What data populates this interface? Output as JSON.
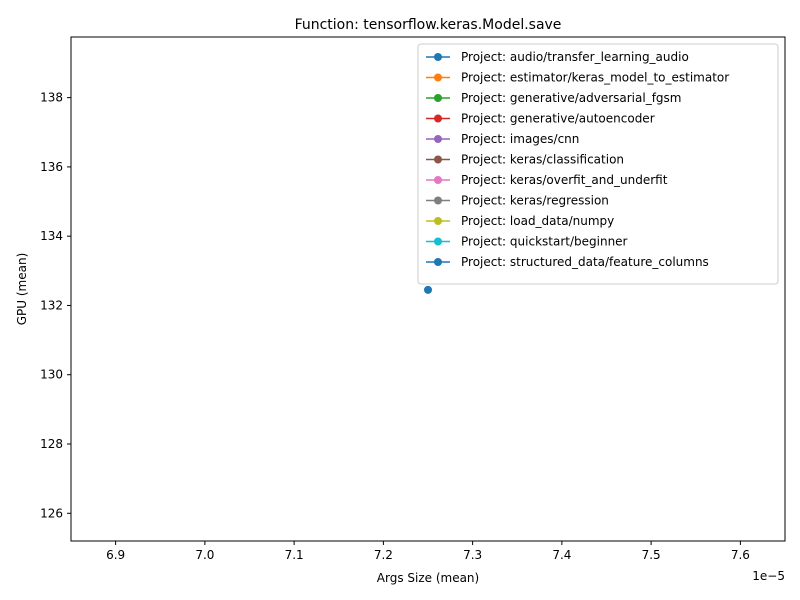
{
  "chart_data": {
    "type": "line",
    "title": "Function: tensorflow.keras.Model.save",
    "xlabel": "Args Size (mean)",
    "ylabel": "GPU (mean)",
    "x_offset_label": "1e−5",
    "xlim": [
      6.85,
      7.65
    ],
    "ylim": [
      125.2,
      139.75
    ],
    "x_ticks": [
      6.9,
      7.0,
      7.1,
      7.2,
      7.3,
      7.4,
      7.5,
      7.6
    ],
    "x_tick_labels": [
      "6.9",
      "7.0",
      "7.1",
      "7.2",
      "7.3",
      "7.4",
      "7.5",
      "7.6"
    ],
    "y_ticks": [
      126,
      128,
      130,
      132,
      134,
      136,
      138
    ],
    "y_tick_labels": [
      "126",
      "128",
      "130",
      "132",
      "134",
      "136",
      "138"
    ],
    "legend_position": "upper right",
    "grid": false,
    "series": [
      {
        "name": "Project: audio/transfer_learning_audio",
        "color": "#1f77b4",
        "points": []
      },
      {
        "name": "Project: estimator/keras_model_to_estimator",
        "color": "#ff7f0e",
        "points": []
      },
      {
        "name": "Project: generative/adversarial_fgsm",
        "color": "#2ca02c",
        "points": []
      },
      {
        "name": "Project: generative/autoencoder",
        "color": "#d62728",
        "points": []
      },
      {
        "name": "Project: images/cnn",
        "color": "#9467bd",
        "points": []
      },
      {
        "name": "Project: keras/classification",
        "color": "#8c564b",
        "points": []
      },
      {
        "name": "Project: keras/overfit_and_underfit",
        "color": "#e377c2",
        "points": []
      },
      {
        "name": "Project: keras/regression",
        "color": "#7f7f7f",
        "points": []
      },
      {
        "name": "Project: load_data/numpy",
        "color": "#bcbd22",
        "points": []
      },
      {
        "name": "Project: quickstart/beginner",
        "color": "#17becf",
        "points": []
      },
      {
        "name": "Project: structured_data/feature_columns",
        "color": "#1f77b4",
        "points": [
          [
            7.25,
            132.45
          ]
        ]
      }
    ]
  }
}
